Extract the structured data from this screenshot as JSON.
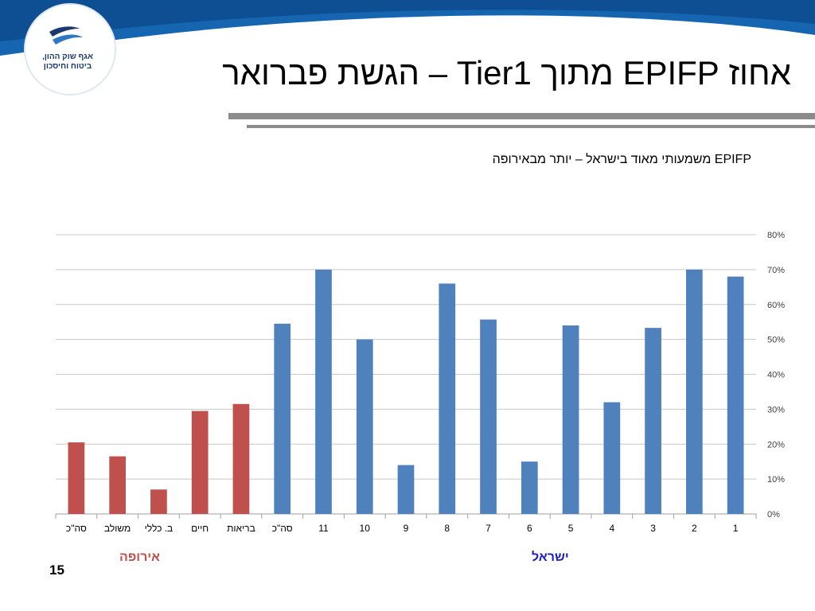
{
  "title": "אחוז EPIFP מתוך Tier1 – הגשת פברואר",
  "logo": {
    "lines": [
      "אגף שוק ההון,",
      "ביטוח וחיסכון"
    ]
  },
  "page_number": "15",
  "chart_data": {
    "type": "bar",
    "subtitle": "EPIFP משמעותי מאוד בישראל – יותר מבאירופה",
    "categories": [
      "סה\"כ",
      "משולב",
      "ב. כללי",
      "חיים",
      "בריאות",
      "סה\"כ",
      "11",
      "10",
      "9",
      "8",
      "7",
      "6",
      "5",
      "4",
      "3",
      "2",
      "1"
    ],
    "values": [
      20.5,
      16.5,
      7,
      29.5,
      31.5,
      54.5,
      70,
      50,
      14,
      66,
      55.7,
      15,
      54,
      32,
      53.3,
      70,
      68
    ],
    "colors": [
      "#c0504d",
      "#c0504d",
      "#c0504d",
      "#c0504d",
      "#c0504d",
      "#4f81bd",
      "#4f81bd",
      "#4f81bd",
      "#4f81bd",
      "#4f81bd",
      "#4f81bd",
      "#4f81bd",
      "#4f81bd",
      "#4f81bd",
      "#4f81bd",
      "#4f81bd",
      "#4f81bd"
    ],
    "groups": [
      "אירופה",
      "ישראל"
    ],
    "ylim": [
      0,
      80
    ],
    "yticks": [
      {
        "value": 0,
        "label": "0%"
      },
      {
        "value": 10,
        "label": "10%"
      },
      {
        "value": 20,
        "label": "20%"
      },
      {
        "value": 30,
        "label": "30%"
      },
      {
        "value": 40,
        "label": "40%"
      },
      {
        "value": 50,
        "label": "50%"
      },
      {
        "value": 60,
        "label": "60%"
      },
      {
        "value": 70,
        "label": "70%"
      },
      {
        "value": 80,
        "label": "80%"
      }
    ],
    "y_axis_side": "right",
    "grid": true
  }
}
